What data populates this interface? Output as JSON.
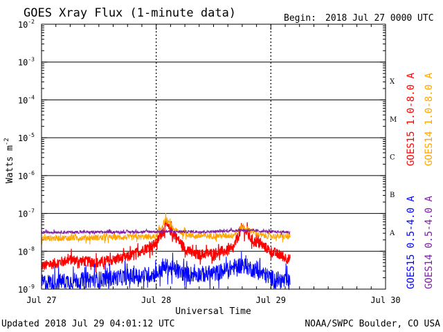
{
  "header": {
    "title": "GOES Xray Flux (1-minute data)",
    "begin_label": "Begin:",
    "begin_value": "2018 Jul 27 0000 UTC"
  },
  "footer": {
    "updated": "Updated 2018 Jul 29 04:01:12 UTC",
    "credit": "NOAA/SWPC Boulder, CO USA"
  },
  "colors": {
    "goes15_long": "#ff0000",
    "goes14_long": "#ffa500",
    "goes15_short": "#0000ff",
    "goes14_short": "#7b1fa2"
  },
  "chart_data": {
    "type": "line",
    "title": "GOES Xray Flux (1-minute data)",
    "xlabel": "Universal Time",
    "ylabel_base": "Watts m",
    "ylabel_exp": "-2",
    "yscale": "log",
    "ylim": [
      1e-09,
      0.01
    ],
    "y_ticks": [
      {
        "base": "10",
        "exp": "-2"
      },
      {
        "base": "10",
        "exp": "-3"
      },
      {
        "base": "10",
        "exp": "-4"
      },
      {
        "base": "10",
        "exp": "-5"
      },
      {
        "base": "10",
        "exp": "-6"
      },
      {
        "base": "10",
        "exp": "-7"
      },
      {
        "base": "10",
        "exp": "-8"
      },
      {
        "base": "10",
        "exp": "-9"
      }
    ],
    "x_ticks": [
      "Jul 27",
      "Jul 28",
      "Jul 29",
      "Jul 30"
    ],
    "xlim": [
      "2018-07-27 00:00",
      "2018-07-30 00:00"
    ],
    "data_end": "2018-07-29 04:01",
    "flare_classes": [
      "X",
      "M",
      "C",
      "B",
      "A"
    ],
    "grid": true,
    "legend": "right",
    "series": [
      {
        "name": "GOES15 1.0-8.0 A",
        "color": "#ff0000",
        "x": [
          "2018-07-27 00:00",
          "2018-07-27 06:00",
          "2018-07-27 12:00",
          "2018-07-27 18:00",
          "2018-07-28 00:00",
          "2018-07-28 02:00",
          "2018-07-28 04:00",
          "2018-07-28 06:00",
          "2018-07-28 08:00",
          "2018-07-28 12:00",
          "2018-07-28 16:00",
          "2018-07-28 18:00",
          "2018-07-28 20:00",
          "2018-07-28 22:00",
          "2018-07-29 00:00",
          "2018-07-29 04:00"
        ],
        "y": [
          4e-09,
          6e-09,
          5e-09,
          7e-09,
          1.6e-08,
          5e-08,
          2.5e-08,
          1.2e-08,
          8e-09,
          9e-09,
          1.1e-08,
          4.5e-08,
          2e-08,
          1.5e-08,
          1e-08,
          6e-09
        ]
      },
      {
        "name": "GOES14 1.0-8.0 A",
        "color": "#ffa500",
        "x": [
          "2018-07-27 00:00",
          "2018-07-27 12:00",
          "2018-07-28 00:00",
          "2018-07-28 02:00",
          "2018-07-28 04:00",
          "2018-07-28 08:00",
          "2018-07-28 16:00",
          "2018-07-28 18:00",
          "2018-07-28 22:00",
          "2018-07-29 04:00"
        ],
        "y": [
          2.2e-08,
          2.3e-08,
          2.4e-08,
          7e-08,
          3.5e-08,
          2.5e-08,
          2.6e-08,
          4.5e-08,
          2.6e-08,
          2.4e-08
        ]
      },
      {
        "name": "GOES15 0.5-4.0 A",
        "color": "#0000ff",
        "x": [
          "2018-07-27 00:00",
          "2018-07-27 12:00",
          "2018-07-28 00:00",
          "2018-07-28 02:00",
          "2018-07-28 06:00",
          "2018-07-28 12:00",
          "2018-07-28 18:00",
          "2018-07-29 00:00",
          "2018-07-29 04:00"
        ],
        "y": [
          1.5e-09,
          1.8e-09,
          2.5e-09,
          4e-09,
          2.5e-09,
          2.5e-09,
          4.5e-09,
          2e-09,
          1.5e-09
        ]
      },
      {
        "name": "GOES14 0.5-4.0 A",
        "color": "#7b1fa2",
        "x": [
          "2018-07-27 00:00",
          "2018-07-27 12:00",
          "2018-07-28 00:00",
          "2018-07-28 12:00",
          "2018-07-28 18:00",
          "2018-07-29 00:00",
          "2018-07-29 04:00"
        ],
        "y": [
          3.2e-08,
          3.2e-08,
          3.3e-08,
          3.3e-08,
          3.6e-08,
          3.3e-08,
          3.2e-08
        ]
      }
    ]
  }
}
